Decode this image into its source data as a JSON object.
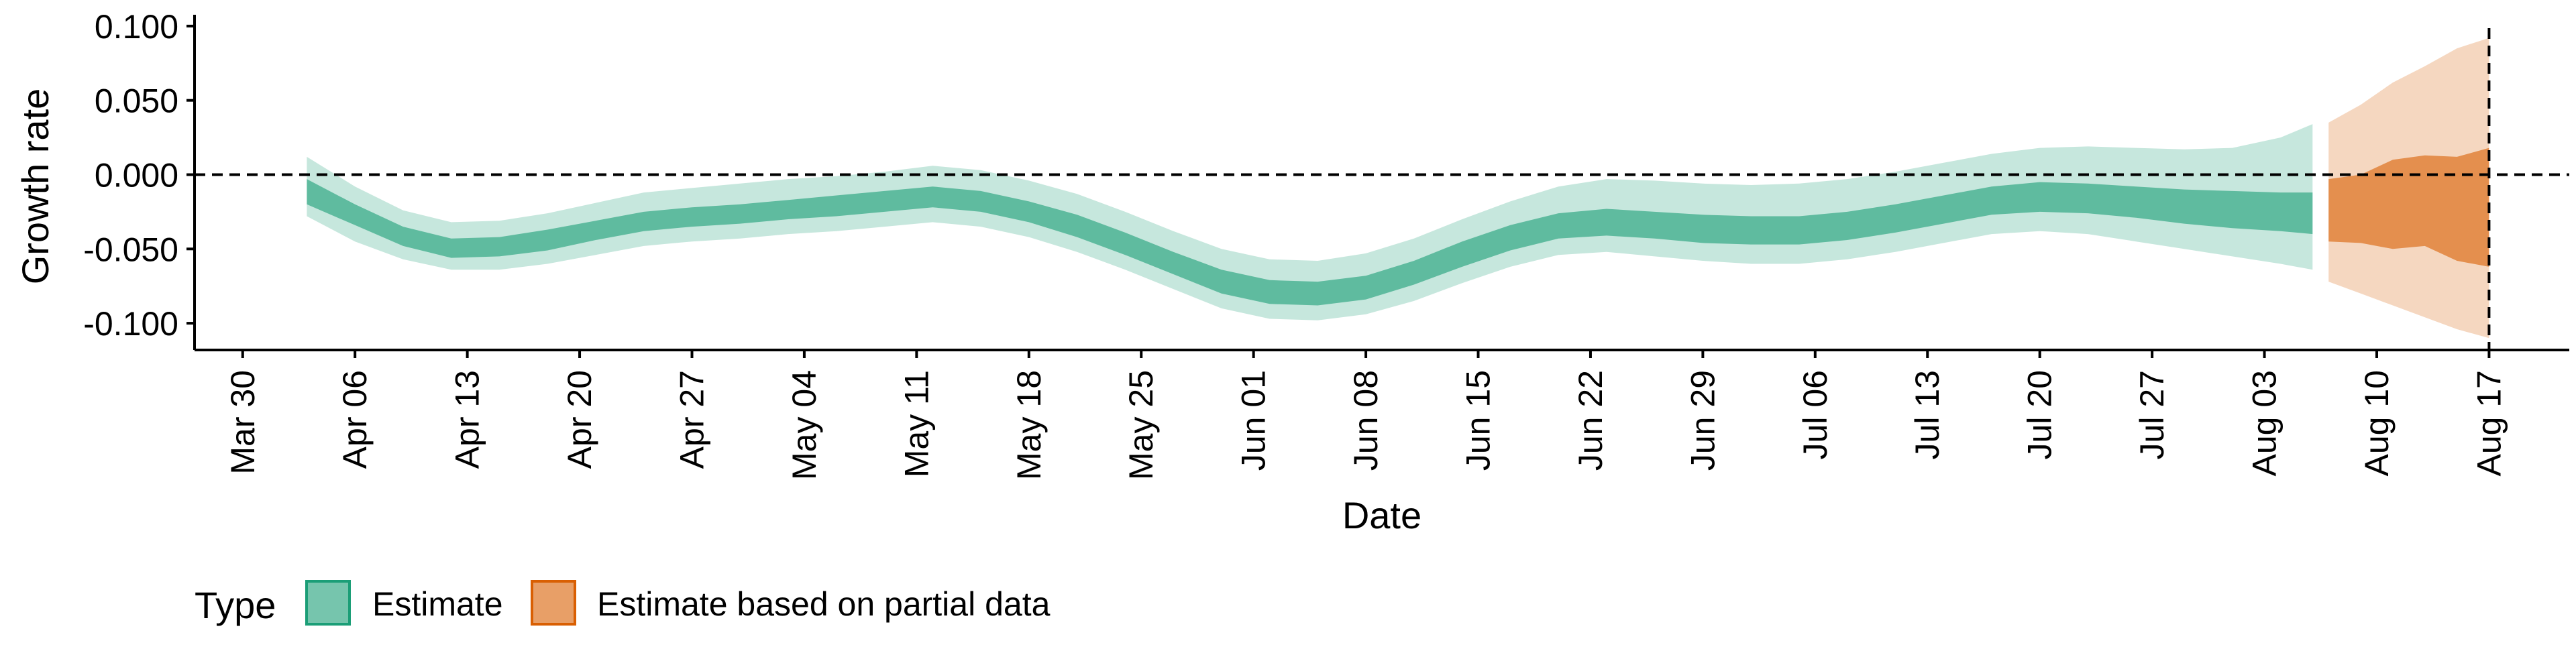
{
  "chart_data": {
    "type": "area",
    "xlabel": "Date",
    "ylabel": "Growth rate",
    "x_axis": {
      "type": "date",
      "range": [
        "2020-03-27",
        "2020-08-22"
      ],
      "ticks": [
        {
          "date": "2020-03-30",
          "label": "Mar 30"
        },
        {
          "date": "2020-04-06",
          "label": "Apr 06"
        },
        {
          "date": "2020-04-13",
          "label": "Apr 13"
        },
        {
          "date": "2020-04-20",
          "label": "Apr 20"
        },
        {
          "date": "2020-04-27",
          "label": "Apr 27"
        },
        {
          "date": "2020-05-04",
          "label": "May 04"
        },
        {
          "date": "2020-05-11",
          "label": "May 11"
        },
        {
          "date": "2020-05-18",
          "label": "May 18"
        },
        {
          "date": "2020-05-25",
          "label": "May 25"
        },
        {
          "date": "2020-06-01",
          "label": "Jun 01"
        },
        {
          "date": "2020-06-08",
          "label": "Jun 08"
        },
        {
          "date": "2020-06-15",
          "label": "Jun 15"
        },
        {
          "date": "2020-06-22",
          "label": "Jun 22"
        },
        {
          "date": "2020-06-29",
          "label": "Jun 29"
        },
        {
          "date": "2020-07-06",
          "label": "Jul 06"
        },
        {
          "date": "2020-07-13",
          "label": "Jul 13"
        },
        {
          "date": "2020-07-20",
          "label": "Jul 20"
        },
        {
          "date": "2020-07-27",
          "label": "Jul 27"
        },
        {
          "date": "2020-08-03",
          "label": "Aug 03"
        },
        {
          "date": "2020-08-10",
          "label": "Aug 10"
        },
        {
          "date": "2020-08-17",
          "label": "Aug 17"
        }
      ]
    },
    "y_axis": {
      "range": [
        -0.118,
        0.104
      ],
      "ticks": [
        {
          "value": 0.1,
          "label": "0.100"
        },
        {
          "value": 0.05,
          "label": "0.050"
        },
        {
          "value": 0.0,
          "label": "0.000"
        },
        {
          "value": -0.05,
          "label": "-0.050"
        },
        {
          "value": -0.1,
          "label": "-0.100"
        }
      ]
    },
    "reference_lines": [
      {
        "orientation": "horizontal",
        "value": 0.0,
        "style": "dashed"
      },
      {
        "orientation": "vertical",
        "date": "2020-08-17",
        "style": "dashed"
      }
    ],
    "grid": false,
    "legend": {
      "title": "Type",
      "position": "bottom-left",
      "entries": [
        {
          "label": "Estimate",
          "color": "#1B9E77"
        },
        {
          "label": "Estimate based on partial data",
          "color": "#D95F02"
        }
      ]
    },
    "series": [
      {
        "name": "Estimate",
        "color": "#1B9E77",
        "points": [
          {
            "date": "2020-04-03",
            "lo90": -0.028,
            "lo50": -0.02,
            "hi50": -0.003,
            "hi90": 0.012
          },
          {
            "date": "2020-04-06",
            "lo90": -0.045,
            "lo50": -0.034,
            "hi50": -0.02,
            "hi90": -0.008
          },
          {
            "date": "2020-04-09",
            "lo90": -0.057,
            "lo50": -0.048,
            "hi50": -0.035,
            "hi90": -0.024
          },
          {
            "date": "2020-04-12",
            "lo90": -0.064,
            "lo50": -0.056,
            "hi50": -0.043,
            "hi90": -0.032
          },
          {
            "date": "2020-04-15",
            "lo90": -0.064,
            "lo50": -0.055,
            "hi50": -0.042,
            "hi90": -0.031
          },
          {
            "date": "2020-04-18",
            "lo90": -0.06,
            "lo50": -0.051,
            "hi50": -0.037,
            "hi90": -0.026
          },
          {
            "date": "2020-04-21",
            "lo90": -0.054,
            "lo50": -0.044,
            "hi50": -0.031,
            "hi90": -0.019
          },
          {
            "date": "2020-04-24",
            "lo90": -0.048,
            "lo50": -0.038,
            "hi50": -0.025,
            "hi90": -0.012
          },
          {
            "date": "2020-04-27",
            "lo90": -0.045,
            "lo50": -0.035,
            "hi50": -0.022,
            "hi90": -0.009
          },
          {
            "date": "2020-04-30",
            "lo90": -0.043,
            "lo50": -0.033,
            "hi50": -0.02,
            "hi90": -0.006
          },
          {
            "date": "2020-05-03",
            "lo90": -0.04,
            "lo50": -0.03,
            "hi50": -0.017,
            "hi90": -0.003
          },
          {
            "date": "2020-05-06",
            "lo90": -0.038,
            "lo50": -0.028,
            "hi50": -0.014,
            "hi90": -0.001
          },
          {
            "date": "2020-05-09",
            "lo90": -0.035,
            "lo50": -0.025,
            "hi50": -0.011,
            "hi90": 0.002
          },
          {
            "date": "2020-05-12",
            "lo90": -0.032,
            "lo50": -0.022,
            "hi50": -0.008,
            "hi90": 0.006
          },
          {
            "date": "2020-05-15",
            "lo90": -0.035,
            "lo50": -0.025,
            "hi50": -0.011,
            "hi90": 0.003
          },
          {
            "date": "2020-05-18",
            "lo90": -0.042,
            "lo50": -0.032,
            "hi50": -0.018,
            "hi90": -0.004
          },
          {
            "date": "2020-05-21",
            "lo90": -0.052,
            "lo50": -0.042,
            "hi50": -0.027,
            "hi90": -0.013
          },
          {
            "date": "2020-05-24",
            "lo90": -0.064,
            "lo50": -0.054,
            "hi50": -0.039,
            "hi90": -0.025
          },
          {
            "date": "2020-05-27",
            "lo90": -0.077,
            "lo50": -0.067,
            "hi50": -0.052,
            "hi90": -0.038
          },
          {
            "date": "2020-05-30",
            "lo90": -0.09,
            "lo50": -0.08,
            "hi50": -0.064,
            "hi90": -0.05
          },
          {
            "date": "2020-06-02",
            "lo90": -0.097,
            "lo50": -0.087,
            "hi50": -0.071,
            "hi90": -0.057
          },
          {
            "date": "2020-06-05",
            "lo90": -0.098,
            "lo50": -0.088,
            "hi50": -0.072,
            "hi90": -0.058
          },
          {
            "date": "2020-06-08",
            "lo90": -0.094,
            "lo50": -0.084,
            "hi50": -0.068,
            "hi90": -0.053
          },
          {
            "date": "2020-06-11",
            "lo90": -0.085,
            "lo50": -0.074,
            "hi50": -0.058,
            "hi90": -0.043
          },
          {
            "date": "2020-06-14",
            "lo90": -0.073,
            "lo50": -0.062,
            "hi50": -0.045,
            "hi90": -0.03
          },
          {
            "date": "2020-06-17",
            "lo90": -0.062,
            "lo50": -0.051,
            "hi50": -0.034,
            "hi90": -0.018
          },
          {
            "date": "2020-06-20",
            "lo90": -0.054,
            "lo50": -0.043,
            "hi50": -0.026,
            "hi90": -0.008
          },
          {
            "date": "2020-06-23",
            "lo90": -0.052,
            "lo50": -0.041,
            "hi50": -0.023,
            "hi90": -0.003
          },
          {
            "date": "2020-06-26",
            "lo90": -0.055,
            "lo50": -0.043,
            "hi50": -0.025,
            "hi90": -0.004
          },
          {
            "date": "2020-06-29",
            "lo90": -0.058,
            "lo50": -0.046,
            "hi50": -0.027,
            "hi90": -0.006
          },
          {
            "date": "2020-07-02",
            "lo90": -0.06,
            "lo50": -0.047,
            "hi50": -0.028,
            "hi90": -0.007
          },
          {
            "date": "2020-07-05",
            "lo90": -0.06,
            "lo50": -0.047,
            "hi50": -0.028,
            "hi90": -0.006
          },
          {
            "date": "2020-07-08",
            "lo90": -0.057,
            "lo50": -0.044,
            "hi50": -0.025,
            "hi90": -0.003
          },
          {
            "date": "2020-07-11",
            "lo90": -0.052,
            "lo50": -0.039,
            "hi50": -0.02,
            "hi90": 0.002
          },
          {
            "date": "2020-07-14",
            "lo90": -0.046,
            "lo50": -0.033,
            "hi50": -0.014,
            "hi90": 0.008
          },
          {
            "date": "2020-07-17",
            "lo90": -0.04,
            "lo50": -0.027,
            "hi50": -0.008,
            "hi90": 0.014
          },
          {
            "date": "2020-07-20",
            "lo90": -0.038,
            "lo50": -0.025,
            "hi50": -0.005,
            "hi90": 0.018
          },
          {
            "date": "2020-07-23",
            "lo90": -0.04,
            "lo50": -0.026,
            "hi50": -0.006,
            "hi90": 0.019
          },
          {
            "date": "2020-07-26",
            "lo90": -0.045,
            "lo50": -0.029,
            "hi50": -0.008,
            "hi90": 0.018
          },
          {
            "date": "2020-07-29",
            "lo90": -0.05,
            "lo50": -0.033,
            "hi50": -0.01,
            "hi90": 0.017
          },
          {
            "date": "2020-08-01",
            "lo90": -0.055,
            "lo50": -0.036,
            "hi50": -0.011,
            "hi90": 0.018
          },
          {
            "date": "2020-08-04",
            "lo90": -0.06,
            "lo50": -0.038,
            "hi50": -0.012,
            "hi90": 0.025
          },
          {
            "date": "2020-08-06",
            "lo90": -0.064,
            "lo50": -0.04,
            "hi50": -0.012,
            "hi90": 0.034
          }
        ]
      },
      {
        "name": "Estimate based on partial data",
        "color": "#D95F02",
        "points": [
          {
            "date": "2020-08-07",
            "lo90": -0.072,
            "lo50": -0.045,
            "hi50": -0.003,
            "hi90": 0.035
          },
          {
            "date": "2020-08-09",
            "lo90": -0.08,
            "lo50": -0.046,
            "hi50": 0.0,
            "hi90": 0.047
          },
          {
            "date": "2020-08-11",
            "lo90": -0.088,
            "lo50": -0.05,
            "hi50": 0.01,
            "hi90": 0.062
          },
          {
            "date": "2020-08-13",
            "lo90": -0.096,
            "lo50": -0.048,
            "hi50": 0.013,
            "hi90": 0.073
          },
          {
            "date": "2020-08-15",
            "lo90": -0.104,
            "lo50": -0.058,
            "hi50": 0.012,
            "hi90": 0.085
          },
          {
            "date": "2020-08-17",
            "lo90": -0.11,
            "lo50": -0.062,
            "hi50": 0.018,
            "hi90": 0.092
          }
        ]
      }
    ]
  }
}
